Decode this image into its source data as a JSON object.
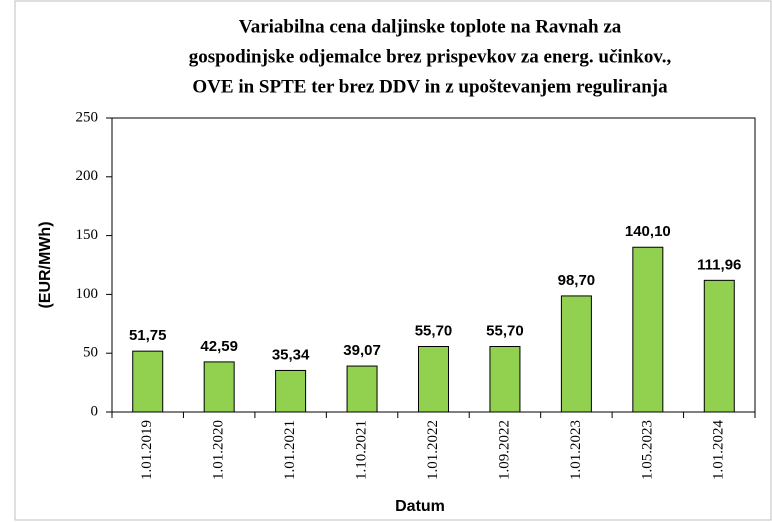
{
  "chart_data": {
    "type": "bar",
    "title": [
      "Variabilna  cena daljinske toplote na Ravnah  za",
      "gospodinjske  odjemalce brez prispevkov  za energ. učinkov.,",
      "OVE in  SPTE ter brez DDV in  z upoštevanjem reguliranja"
    ],
    "categories": [
      "1.01.2019",
      "1.01.2020",
      "1.01.2021",
      "1.10.2021",
      "1.01.2022",
      "1.09.2022",
      "1.01.2023",
      "1.05.2023",
      "1.01.2024"
    ],
    "values": [
      51.75,
      42.59,
      35.34,
      39.07,
      55.7,
      55.7,
      98.7,
      140.1,
      111.96
    ],
    "value_labels": [
      "51,75",
      "42,59",
      "35,34",
      "39,07",
      "55,70",
      "55,70",
      "98,70",
      "140,10",
      "111,96"
    ],
    "color": "#92d050",
    "ylabel": "(EUR/MWh)",
    "xlabel": "Datum",
    "ylim": [
      0,
      250
    ],
    "yticks": [
      0,
      50,
      100,
      150,
      200,
      250
    ],
    "grid": false
  }
}
